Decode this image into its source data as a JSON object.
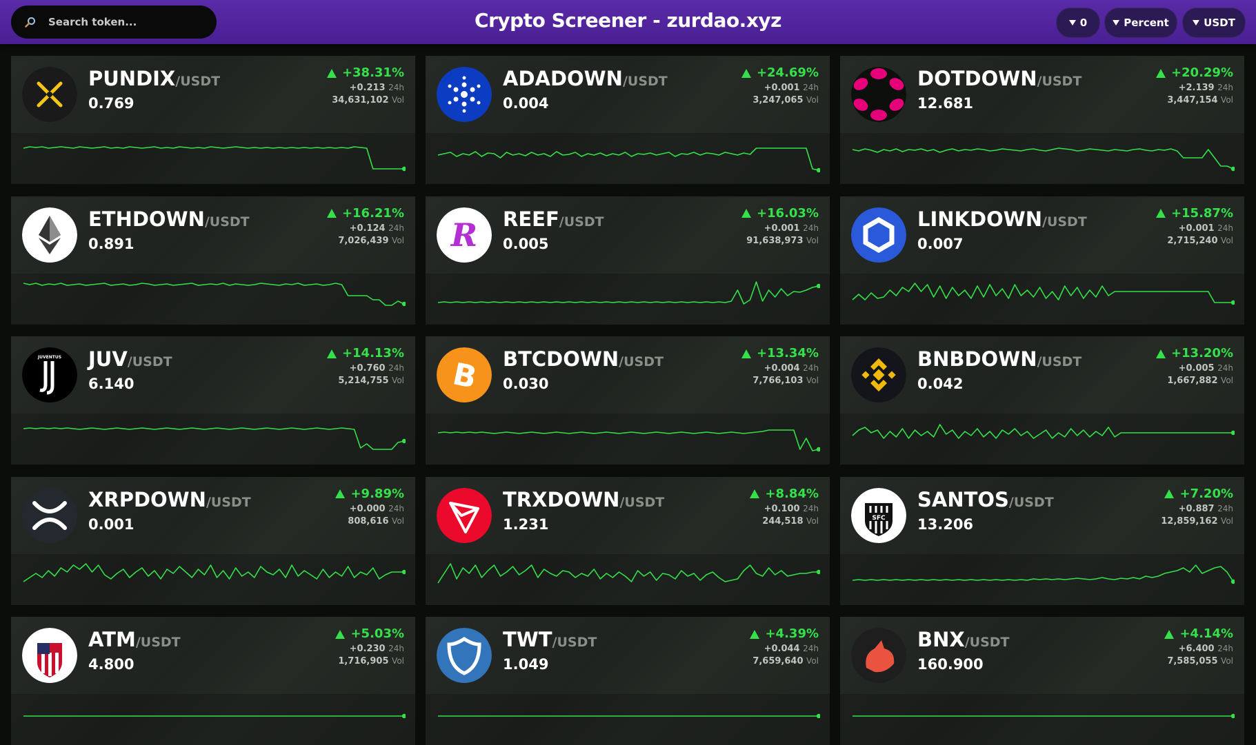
{
  "header": {
    "title": "Crypto Screener - zurdao.xyz",
    "search_placeholder": "Search token...",
    "filters": [
      {
        "label": "0"
      },
      {
        "label": "Percent"
      },
      {
        "label": "USDT"
      }
    ]
  },
  "labels": {
    "day": "24h",
    "vol": "Vol"
  },
  "colors": {
    "accent": "#5a2aa8",
    "up": "#35e04a"
  },
  "tokens": [
    {
      "symbol": "PUNDIX",
      "quote": "/USDT",
      "price": "0.769",
      "pct": "+38.31%",
      "change": "+0.213",
      "volume": "34,631,102",
      "icon": "pundix-icon",
      "spark": [
        50,
        52,
        51,
        52,
        50,
        51,
        52,
        51,
        50,
        52,
        51,
        50,
        51,
        52,
        50,
        51,
        50,
        52,
        51,
        50,
        51,
        52,
        50,
        51,
        50,
        52,
        51,
        50,
        51,
        50,
        52,
        51,
        50,
        51,
        52,
        51,
        50,
        51,
        50,
        51,
        50,
        51,
        50,
        51,
        50,
        51,
        50,
        51,
        50,
        51,
        50,
        51,
        50,
        52,
        51,
        50,
        20,
        20,
        20,
        20,
        20,
        20
      ]
    },
    {
      "symbol": "ADADOWN",
      "quote": "/USDT",
      "price": "0.004",
      "pct": "+24.69%",
      "change": "+0.001",
      "volume": "3,247,065",
      "icon": "cardano-icon",
      "spark": [
        40,
        42,
        44,
        38,
        42,
        40,
        45,
        38,
        43,
        42,
        36,
        44,
        40,
        42,
        39,
        44,
        40,
        42,
        38,
        45,
        40,
        41,
        44,
        38,
        42,
        40,
        43,
        39,
        42,
        40,
        44,
        38,
        42,
        41,
        43,
        40,
        42,
        44,
        38,
        42,
        41,
        44,
        40,
        43,
        42,
        40,
        44,
        42,
        40,
        43,
        41,
        50,
        50,
        50,
        50,
        50,
        50,
        50,
        50,
        50,
        20,
        18
      ]
    },
    {
      "symbol": "DOTDOWN",
      "quote": "/USDT",
      "price": "12.681",
      "pct": "+20.29%",
      "change": "+2.139",
      "volume": "3,447,154",
      "icon": "polkadot-icon",
      "spark": [
        48,
        46,
        49,
        47,
        44,
        48,
        46,
        49,
        45,
        48,
        47,
        49,
        46,
        48,
        44,
        47,
        49,
        46,
        48,
        47,
        49,
        48,
        46,
        47,
        49,
        48,
        47,
        46,
        48,
        49,
        47,
        46,
        48,
        50,
        49,
        48,
        46,
        47,
        49,
        48,
        47,
        46,
        48,
        47,
        46,
        48,
        49,
        47,
        46,
        48,
        47,
        49,
        46,
        36,
        36,
        36,
        36,
        48,
        36,
        24,
        24,
        20
      ]
    },
    {
      "symbol": "ETHDOWN",
      "quote": "/USDT",
      "price": "0.891",
      "pct": "+16.21%",
      "change": "+0.124",
      "volume": "7,026,439",
      "icon": "ethereum-icon",
      "spark": [
        58,
        56,
        58,
        55,
        57,
        56,
        58,
        55,
        56,
        57,
        55,
        56,
        57,
        58,
        55,
        56,
        57,
        55,
        56,
        58,
        57,
        55,
        56,
        57,
        55,
        56,
        57,
        58,
        55,
        56,
        57,
        56,
        58,
        55,
        57,
        56,
        55,
        56,
        58,
        57,
        56,
        55,
        57,
        56,
        58,
        55,
        56,
        57,
        55,
        56,
        58,
        56,
        40,
        40,
        40,
        40,
        34,
        34,
        26,
        26,
        32,
        28
      ]
    },
    {
      "symbol": "REEF",
      "quote": "/USDT",
      "price": "0.005",
      "pct": "+16.03%",
      "change": "+0.001",
      "volume": "91,638,973",
      "icon": "reef-icon",
      "spark": [
        30,
        31,
        30,
        31,
        30,
        31,
        30,
        31,
        30,
        31,
        30,
        31,
        30,
        31,
        30,
        31,
        30,
        31,
        30,
        31,
        30,
        31,
        30,
        31,
        30,
        31,
        30,
        31,
        30,
        31,
        30,
        31,
        30,
        31,
        30,
        31,
        30,
        31,
        30,
        31,
        30,
        31,
        30,
        31,
        30,
        31,
        30,
        32,
        48,
        28,
        34,
        60,
        32,
        48,
        38,
        50,
        40,
        46,
        45,
        48,
        52,
        54
      ]
    },
    {
      "symbol": "LINKDOWN",
      "quote": "/USDT",
      "price": "0.007",
      "pct": "+15.87%",
      "change": "+0.001",
      "volume": "2,715,240",
      "icon": "chainlink-icon",
      "spark": [
        34,
        42,
        34,
        44,
        36,
        38,
        48,
        40,
        52,
        46,
        58,
        46,
        56,
        38,
        54,
        36,
        52,
        40,
        48,
        36,
        54,
        38,
        56,
        40,
        50,
        36,
        56,
        40,
        48,
        38,
        52,
        36,
        46,
        34,
        54,
        40,
        52,
        36,
        48,
        38,
        54,
        40,
        46,
        46,
        46,
        46,
        46,
        46,
        46,
        46,
        46,
        46,
        46,
        46,
        46,
        46,
        46,
        46,
        30,
        30,
        30,
        30
      ]
    },
    {
      "symbol": "JUV",
      "quote": "/USDT",
      "price": "6.140",
      "pct": "+14.13%",
      "change": "+0.760",
      "volume": "5,214,755",
      "icon": "juventus-icon",
      "spark": [
        50,
        51,
        50,
        51,
        50,
        51,
        50,
        51,
        50,
        49,
        50,
        51,
        50,
        49,
        50,
        51,
        50,
        49,
        50,
        51,
        50,
        49,
        50,
        51,
        50,
        49,
        50,
        51,
        50,
        49,
        50,
        51,
        50,
        49,
        50,
        51,
        50,
        49,
        50,
        51,
        50,
        49,
        50,
        51,
        50,
        49,
        50,
        51,
        50,
        49,
        50,
        51,
        50,
        49,
        22,
        28,
        20,
        20,
        20,
        20,
        30,
        32
      ]
    },
    {
      "symbol": "BTCDOWN",
      "quote": "/USDT",
      "price": "0.030",
      "pct": "+13.34%",
      "change": "+0.004",
      "volume": "7,766,103",
      "icon": "bitcoin-icon",
      "spark": [
        44,
        45,
        44,
        45,
        44,
        45,
        44,
        45,
        44,
        43,
        44,
        45,
        44,
        43,
        44,
        45,
        44,
        43,
        44,
        45,
        44,
        43,
        44,
        45,
        44,
        43,
        44,
        45,
        44,
        43,
        44,
        45,
        44,
        43,
        44,
        45,
        44,
        43,
        44,
        45,
        44,
        43,
        44,
        45,
        44,
        43,
        44,
        45,
        44,
        43,
        44,
        45,
        46,
        48,
        48,
        48,
        48,
        48,
        20,
        36,
        18,
        20
      ]
    },
    {
      "symbol": "BNBDOWN",
      "quote": "/USDT",
      "price": "0.042",
      "pct": "+13.20%",
      "change": "+0.005",
      "volume": "1,667,882",
      "icon": "binance-icon",
      "spark": [
        40,
        48,
        52,
        44,
        48,
        36,
        46,
        38,
        50,
        36,
        48,
        40,
        46,
        38,
        56,
        42,
        48,
        36,
        46,
        40,
        50,
        38,
        46,
        36,
        48,
        42,
        50,
        40,
        46,
        36,
        42,
        48,
        36,
        44,
        38,
        50,
        40,
        48,
        38,
        46,
        40,
        52,
        38,
        44,
        44,
        44,
        44,
        44,
        44,
        44,
        44,
        44,
        44,
        44,
        44,
        44,
        44,
        44,
        44,
        44,
        44,
        44
      ]
    },
    {
      "symbol": "XRPDOWN",
      "quote": "/USDT",
      "price": "0.001",
      "pct": "+9.89%",
      "change": "+0.000",
      "volume": "808,616",
      "icon": "xrp-icon",
      "spark": [
        32,
        38,
        44,
        38,
        48,
        40,
        52,
        46,
        56,
        50,
        58,
        46,
        56,
        42,
        36,
        44,
        50,
        38,
        46,
        52,
        40,
        48,
        36,
        50,
        44,
        54,
        46,
        38,
        50,
        42,
        56,
        38,
        48,
        36,
        52,
        40,
        46,
        38,
        54,
        46,
        42,
        50,
        38,
        56,
        40,
        48,
        42,
        36,
        50,
        38,
        46,
        40,
        54,
        38,
        46,
        42,
        52,
        36,
        42,
        46,
        46,
        46
      ]
    },
    {
      "symbol": "TRXDOWN",
      "quote": "/USDT",
      "price": "1.231",
      "pct": "+8.84%",
      "change": "+0.100",
      "volume": "244,518",
      "icon": "tron-icon",
      "spark": [
        30,
        44,
        58,
        36,
        52,
        44,
        56,
        38,
        48,
        56,
        40,
        46,
        54,
        42,
        48,
        56,
        38,
        50,
        44,
        40,
        48,
        46,
        38,
        44,
        40,
        50,
        36,
        44,
        38,
        46,
        40,
        32,
        48,
        40,
        46,
        34,
        44,
        42,
        36,
        48,
        40,
        44,
        34,
        42,
        46,
        38,
        32,
        34,
        36,
        48,
        56,
        44,
        40,
        52,
        42,
        48,
        40,
        42,
        44,
        44,
        46,
        46
      ]
    },
    {
      "symbol": "SANTOS",
      "quote": "/USDT",
      "price": "13.206",
      "pct": "+7.20%",
      "change": "+0.887",
      "volume": "12,859,162",
      "icon": "santos-icon",
      "spark": [
        34,
        35,
        34,
        35,
        34,
        35,
        34,
        35,
        34,
        35,
        34,
        35,
        34,
        35,
        34,
        35,
        34,
        35,
        34,
        35,
        34,
        35,
        34,
        35,
        34,
        35,
        34,
        35,
        34,
        36,
        35,
        36,
        35,
        36,
        35,
        36,
        37,
        36,
        35,
        36,
        38,
        36,
        35,
        37,
        36,
        38,
        36,
        40,
        38,
        40,
        44,
        46,
        48,
        52,
        46,
        56,
        44,
        48,
        52,
        54,
        46,
        32
      ]
    },
    {
      "symbol": "ATM",
      "quote": "/USDT",
      "price": "4.800",
      "pct": "+5.03%",
      "change": "+0.230",
      "volume": "1,716,905",
      "icon": "atletico-icon",
      "spark": [
        40,
        40,
        40,
        40,
        40,
        40,
        40,
        40,
        40,
        40,
        40,
        40,
        40,
        40,
        40,
        40,
        40,
        40,
        40,
        40,
        40,
        40,
        40,
        40,
        40,
        40,
        40,
        40,
        40,
        40,
        40,
        40,
        40,
        40,
        40,
        40,
        40,
        40,
        40,
        40,
        40,
        40,
        40,
        40,
        40,
        40,
        40,
        40,
        40,
        40,
        40,
        40,
        40,
        40,
        40,
        40,
        40,
        40,
        40,
        40,
        40,
        40
      ]
    },
    {
      "symbol": "TWT",
      "quote": "/USDT",
      "price": "1.049",
      "pct": "+4.39%",
      "change": "+0.044",
      "volume": "7,659,640",
      "icon": "trustwallet-icon",
      "spark": [
        40,
        40,
        40,
        40,
        40,
        40,
        40,
        40,
        40,
        40,
        40,
        40,
        40,
        40,
        40,
        40,
        40,
        40,
        40,
        40,
        40,
        40,
        40,
        40,
        40,
        40,
        40,
        40,
        40,
        40,
        40,
        40,
        40,
        40,
        40,
        40,
        40,
        40,
        40,
        40,
        40,
        40,
        40,
        40,
        40,
        40,
        40,
        40,
        40,
        40,
        40,
        40,
        40,
        40,
        40,
        40,
        40,
        40,
        40,
        40,
        40,
        40
      ]
    },
    {
      "symbol": "BNX",
      "quote": "/USDT",
      "price": "160.900",
      "pct": "+4.14%",
      "change": "+6.400",
      "volume": "7,585,055",
      "icon": "binaryx-icon",
      "spark": [
        40,
        40,
        40,
        40,
        40,
        40,
        40,
        40,
        40,
        40,
        40,
        40,
        40,
        40,
        40,
        40,
        40,
        40,
        40,
        40,
        40,
        40,
        40,
        40,
        40,
        40,
        40,
        40,
        40,
        40,
        40,
        40,
        40,
        40,
        40,
        40,
        40,
        40,
        40,
        40,
        40,
        40,
        40,
        40,
        40,
        40,
        40,
        40,
        40,
        40,
        40,
        40,
        40,
        40,
        40,
        40,
        40,
        40,
        40,
        40,
        40,
        40
      ]
    }
  ]
}
